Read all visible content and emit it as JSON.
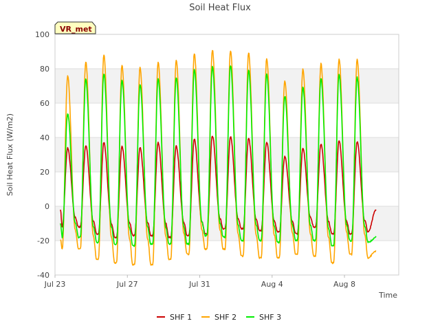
{
  "chart_data": {
    "type": "line",
    "title": "Soil Heat Flux",
    "xlabel": "Time",
    "ylabel": "Soil Heat Flux (W/m2)",
    "badge": "VR_met",
    "xlim": [
      0,
      19
    ],
    "ylim": [
      -40,
      100
    ],
    "yticks": [
      -40,
      -20,
      0,
      20,
      40,
      60,
      80,
      100
    ],
    "xticks": [
      {
        "value": 0,
        "label": "Jul 23"
      },
      {
        "value": 4,
        "label": "Jul 27"
      },
      {
        "value": 8,
        "label": "Jul 31"
      },
      {
        "value": 12,
        "label": "Aug 4"
      },
      {
        "value": 16,
        "label": "Aug 8"
      }
    ],
    "grid": true,
    "legend_position": "bottom",
    "series": [
      {
        "name": "SHF 1",
        "color": "#cc0000",
        "start": -2,
        "end": -2,
        "min": [
          -12,
          -16,
          -18,
          -17,
          -17,
          -18,
          -17,
          -16,
          -13,
          -13,
          -14,
          -15,
          -16,
          -12,
          -16,
          -16,
          -15
        ],
        "max": [
          34,
          35.5,
          37,
          35,
          34,
          37,
          35,
          39,
          41,
          40.5,
          39.5,
          37.5,
          29,
          34,
          36,
          38,
          37.5
        ]
      },
      {
        "name": "SHF 2",
        "color": "#ffa500",
        "start": -19,
        "end": -26,
        "min": [
          -25,
          -31,
          -33,
          -34,
          -34,
          -31,
          -28,
          -25,
          -25,
          -29,
          -30,
          -30,
          -28,
          -29,
          -33,
          -28,
          -30
        ],
        "max": [
          76,
          84,
          88,
          82,
          81,
          84,
          85,
          89,
          91,
          90.5,
          89.5,
          86,
          73,
          79.5,
          83,
          85.5,
          85.5
        ]
      },
      {
        "name": "SHF 3",
        "color": "#00ee00",
        "start": -10,
        "end": -18,
        "min": [
          -18,
          -21,
          -22,
          -23,
          -22,
          -22,
          -22,
          -17,
          -18,
          -20,
          -20,
          -21,
          -20,
          -20,
          -23,
          -20,
          -21
        ],
        "max": [
          54,
          74,
          77,
          73.5,
          71,
          74,
          75,
          79.5,
          81,
          82,
          79,
          77,
          64,
          69,
          74.5,
          76.5,
          75
        ]
      }
    ],
    "peaks_at_day_offsets": [
      0.7,
      1.7,
      2.7,
      3.7,
      4.7,
      5.7,
      6.7,
      7.7,
      8.7,
      9.7,
      10.7,
      11.7,
      12.7,
      13.7,
      14.7,
      15.7,
      16.7
    ],
    "series_x_range": [
      0.3,
      17.75
    ]
  }
}
